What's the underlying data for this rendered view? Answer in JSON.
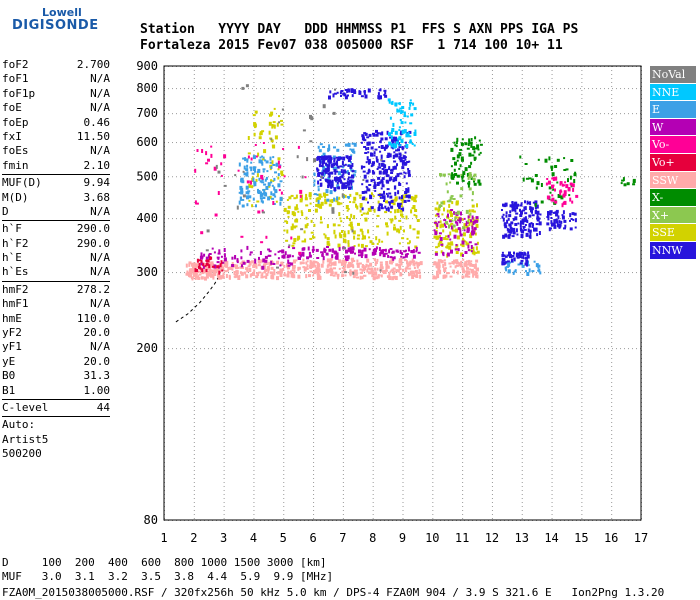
{
  "logo": {
    "top": "Lowell",
    "main": "DIGISONDE"
  },
  "header": {
    "line1": "Station   YYYY DAY   DDD HHMMSS P1  FFS S AXN PPS IGA PS",
    "line2": "Fortaleza 2015 Fev07 038 005000 RSF   1 714 100 10+ 11"
  },
  "params": [
    {
      "label": "foF2",
      "value": "2.700"
    },
    {
      "label": "foF1",
      "value": "N/A"
    },
    {
      "label": "foF1p",
      "value": "N/A"
    },
    {
      "label": "foE",
      "value": "N/A"
    },
    {
      "label": "foEp",
      "value": "0.46"
    },
    {
      "label": "fxI",
      "value": "11.50"
    },
    {
      "label": "foEs",
      "value": "N/A"
    },
    {
      "label": "fmin",
      "value": "2.10"
    },
    {
      "sep": true
    },
    {
      "label": "MUF(D)",
      "value": "9.94"
    },
    {
      "label": "M(D)",
      "value": "3.68"
    },
    {
      "label": "D",
      "value": "N/A"
    },
    {
      "sep": true
    },
    {
      "label": "h`F",
      "value": "290.0"
    },
    {
      "label": "h`F2",
      "value": "290.0"
    },
    {
      "label": "h`E",
      "value": "N/A"
    },
    {
      "label": "h`Es",
      "value": "N/A"
    },
    {
      "sep": true
    },
    {
      "label": "hmF2",
      "value": "278.2"
    },
    {
      "label": "hmF1",
      "value": "N/A"
    },
    {
      "label": "hmE",
      "value": "110.0"
    },
    {
      "label": "yF2",
      "value": "20.0"
    },
    {
      "label": "yF1",
      "value": "N/A"
    },
    {
      "label": "yE",
      "value": "20.0"
    },
    {
      "label": "B0",
      "value": "31.3"
    },
    {
      "label": "B1",
      "value": "1.00"
    },
    {
      "sep": true
    },
    {
      "label": "C-level",
      "value": "44"
    },
    {
      "sep": true
    },
    {
      "text": "Auto:"
    },
    {
      "text": "Artist5"
    },
    {
      "text": "500200"
    }
  ],
  "legend": [
    {
      "label": "NoVal",
      "color": "#808080"
    },
    {
      "label": "NNE",
      "color": "#00c8ff"
    },
    {
      "label": "E",
      "color": "#3ca0e6"
    },
    {
      "label": "W",
      "color": "#b400b4"
    },
    {
      "label": "Vo-",
      "color": "#ff0096"
    },
    {
      "label": "Vo+",
      "color": "#e6003c"
    },
    {
      "label": "SSW",
      "color": "#ffaaaa"
    },
    {
      "label": "X-",
      "color": "#008c00"
    },
    {
      "label": "X+",
      "color": "#8cc850"
    },
    {
      "label": "SSE",
      "color": "#d2d200"
    },
    {
      "label": "NNW",
      "color": "#2814dc"
    }
  ],
  "footer": {
    "line1": "D     100  200  400  600  800 1000 1500 3000 [km]",
    "line2": "MUF   3.0  3.1  3.2  3.5  3.8  4.4  5.9  9.9 [MHz]",
    "line3": "FZA0M_2015038005000.RSF / 320fx256h 50 kHz 5.0 km / DPS-4 FZA0M 904 / 3.9 S 321.6 E   Ion2Png 1.3.20"
  },
  "chart_data": {
    "type": "scatter",
    "xlim": [
      1,
      17
    ],
    "ylim": [
      80,
      900
    ],
    "yscale": "log",
    "xticks": [
      1,
      2,
      3,
      4,
      5,
      6,
      7,
      8,
      9,
      10,
      11,
      12,
      13,
      14,
      15,
      16,
      17
    ],
    "yticks": [
      80,
      200,
      300,
      400,
      500,
      600,
      700,
      800,
      900
    ],
    "grid": true,
    "legend_position": "right",
    "clusters": [
      {
        "name": "SSW",
        "x": [
          1.7,
          2.9
        ],
        "y": [
          292,
          318
        ],
        "n": 120
      },
      {
        "name": "SSW",
        "x": [
          2.9,
          5.4
        ],
        "y": [
          293,
          322
        ],
        "n": 150
      },
      {
        "name": "SSW",
        "x": [
          5.4,
          9.6
        ],
        "y": [
          293,
          324
        ],
        "n": 260
      },
      {
        "name": "SSW",
        "x": [
          10.0,
          11.5
        ],
        "y": [
          293,
          322
        ],
        "n": 90
      },
      {
        "name": "SSE",
        "x": [
          5.0,
          9.6
        ],
        "y": [
          345,
          460
        ],
        "n": 240
      },
      {
        "name": "SSE",
        "x": [
          10.0,
          11.5
        ],
        "y": [
          330,
          440
        ],
        "n": 110
      },
      {
        "name": "SSE",
        "x": [
          3.8,
          5.0
        ],
        "y": [
          430,
          720
        ],
        "n": 60
      },
      {
        "name": "W",
        "x": [
          2.2,
          5.3
        ],
        "y": [
          310,
          345
        ],
        "n": 70
      },
      {
        "name": "W",
        "x": [
          5.4,
          9.6
        ],
        "y": [
          325,
          345
        ],
        "n": 110
      },
      {
        "name": "W",
        "x": [
          10.0,
          11.5
        ],
        "y": [
          330,
          420
        ],
        "n": 70
      },
      {
        "name": "E",
        "x": [
          3.5,
          4.9
        ],
        "y": [
          430,
          560
        ],
        "n": 110
      },
      {
        "name": "E",
        "x": [
          6.0,
          7.4
        ],
        "y": [
          440,
          600
        ],
        "n": 80
      },
      {
        "name": "E",
        "x": [
          12.4,
          13.6
        ],
        "y": [
          300,
          320
        ],
        "n": 30
      },
      {
        "name": "NNW",
        "x": [
          6.1,
          7.3
        ],
        "y": [
          470,
          560
        ],
        "n": 150
      },
      {
        "name": "NNW",
        "x": [
          7.6,
          9.2
        ],
        "y": [
          420,
          640
        ],
        "n": 250
      },
      {
        "name": "NNW",
        "x": [
          12.3,
          13.6
        ],
        "y": [
          365,
          440
        ],
        "n": 130
      },
      {
        "name": "NNW",
        "x": [
          12.3,
          13.2
        ],
        "y": [
          315,
          335
        ],
        "n": 50
      },
      {
        "name": "NNW",
        "x": [
          13.8,
          14.8
        ],
        "y": [
          380,
          420
        ],
        "n": 50
      },
      {
        "name": "NNW",
        "x": [
          6.5,
          8.4
        ],
        "y": [
          765,
          800
        ],
        "n": 40
      },
      {
        "name": "NNE",
        "x": [
          8.5,
          9.4
        ],
        "y": [
          590,
          760
        ],
        "n": 60
      },
      {
        "name": "X-",
        "x": [
          10.6,
          11.6
        ],
        "y": [
          480,
          620
        ],
        "n": 70
      },
      {
        "name": "X-",
        "x": [
          12.8,
          14.8
        ],
        "y": [
          430,
          560
        ],
        "n": 40
      },
      {
        "name": "X-",
        "x": [
          16.2,
          16.8
        ],
        "y": [
          480,
          500
        ],
        "n": 8
      },
      {
        "name": "X+",
        "x": [
          10.2,
          11.4
        ],
        "y": [
          380,
          520
        ],
        "n": 40
      },
      {
        "name": "Vo-",
        "x": [
          2.0,
          5.8
        ],
        "y": [
          330,
          620
        ],
        "n": 45
      },
      {
        "name": "Vo-",
        "x": [
          13.8,
          14.8
        ],
        "y": [
          430,
          500
        ],
        "n": 40
      },
      {
        "name": "Vo+",
        "x": [
          2.0,
          3.0
        ],
        "y": [
          300,
          330
        ],
        "n": 25
      },
      {
        "name": "NoVal",
        "x": [
          2.0,
          9.0
        ],
        "y": [
          300,
          820
        ],
        "n": 40
      }
    ],
    "trace": {
      "x": [
        1.4,
        1.8,
        2.2,
        2.5,
        2.7,
        2.8
      ],
      "y": [
        230,
        240,
        255,
        270,
        282,
        290
      ]
    }
  }
}
